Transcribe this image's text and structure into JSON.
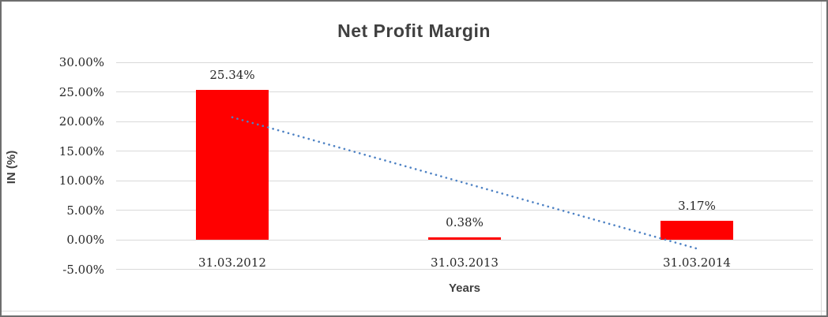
{
  "window": {
    "background": "#ffffff",
    "outer_border_color": "#6e6e6e",
    "inner_frame_color": "#d9d9d9"
  },
  "chart_data": {
    "type": "bar",
    "title": "Net Profit Margin",
    "xlabel": "Years",
    "ylabel": "IN (%)",
    "categories": [
      "31.03.2012",
      "31.03.2013",
      "31.03.2014"
    ],
    "values": [
      25.34,
      0.38,
      3.17
    ],
    "data_labels": [
      "25.34%",
      "0.38%",
      "3.17%"
    ],
    "y_ticks": [
      {
        "label": "30.00%",
        "value": 30
      },
      {
        "label": "25.00%",
        "value": 25
      },
      {
        "label": "20.00%",
        "value": 20
      },
      {
        "label": "15.00%",
        "value": 15
      },
      {
        "label": "10.00%",
        "value": 10
      },
      {
        "label": "5.00%",
        "value": 5
      },
      {
        "label": "0.00%",
        "value": 0
      },
      {
        "label": "-5.00%",
        "value": -5
      }
    ],
    "ylim": [
      -5,
      30
    ],
    "grid": true,
    "legend": "none",
    "colors": {
      "bar": "#ff0000",
      "gridline": "#d9d9d9",
      "trendline": "#4e82c4",
      "title_text": "#404040",
      "tick_text": "#262626"
    },
    "trendline": {
      "type": "linear",
      "style": "dotted",
      "color": "#4e82c4",
      "start_value": 20.7,
      "end_value": -1.5
    }
  }
}
